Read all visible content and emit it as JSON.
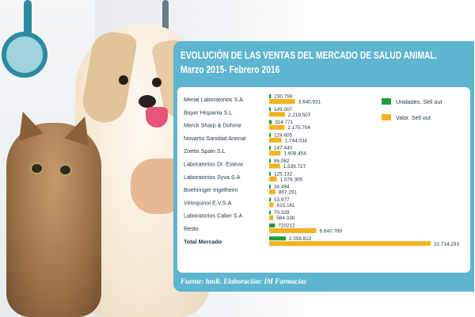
{
  "title": "EVOLUCIÓN DE LAS VENTAS DEL MERCADO DE SALUD ANIMAL.",
  "subtitle": "Marzo 2015- Febrero 2016",
  "source": "Fuente: hmR.   Elaboración: IM Farmacias",
  "colors": {
    "units": "#1e9c3c",
    "value": "#f3b21f",
    "panel": "#5eb5cf",
    "text": "#1f3540"
  },
  "chart_data": {
    "type": "bar",
    "orientation": "horizontal",
    "title": "EVOLUCIÓN DE LAS VENTAS DEL MERCADO DE SALUD ANIMAL.",
    "subtitle": "Marzo 2015- Febrero 2016",
    "categories": [
      "Merial Laboratorios S.A",
      "Bayer Hispania S.L",
      "Merck Sharp & Dohme",
      "Novartis Sanidad Animal",
      "Zoetis Spain S.L",
      "Laboratorios Dr. Esteve",
      "Laboratorios Syva S.A",
      "Boehringer Ingelheim",
      "Vétoquinol E.V.S.A",
      "Laboratorios Calier S.A",
      "Resto",
      "Total Mercado"
    ],
    "series": [
      {
        "name": "Unidades. Sell out",
        "values": [
          230794,
          149007,
          314771,
          124605,
          147440,
          86062,
          125132,
          34494,
          53977,
          70328,
          720212,
          2056822
        ],
        "labels": [
          "230.794",
          "149.007",
          "314.771",
          "124.605",
          "147.440",
          "86.062",
          "125.132",
          "34.494",
          "53.977",
          "70.328",
          "720212",
          "2.056.822"
        ]
      },
      {
        "name": "Valor. Sell out",
        "values": [
          3640931,
          2219507,
          2175704,
          1744034,
          1608454,
          1539727,
          1078305,
          867291,
          615161,
          584330,
          6640789,
          22714233
        ],
        "labels": [
          "3.640.931",
          "2.219.507",
          "2.175.704",
          "1.744.034",
          "1.608.454",
          "1.539.727",
          "1.078.305",
          "867.291",
          "615.161",
          "584.330",
          "6.640.789",
          "22.714.233"
        ]
      }
    ],
    "legend_position": "top-right",
    "grid": false,
    "bold_categories": [
      "Total Mercado"
    ]
  }
}
